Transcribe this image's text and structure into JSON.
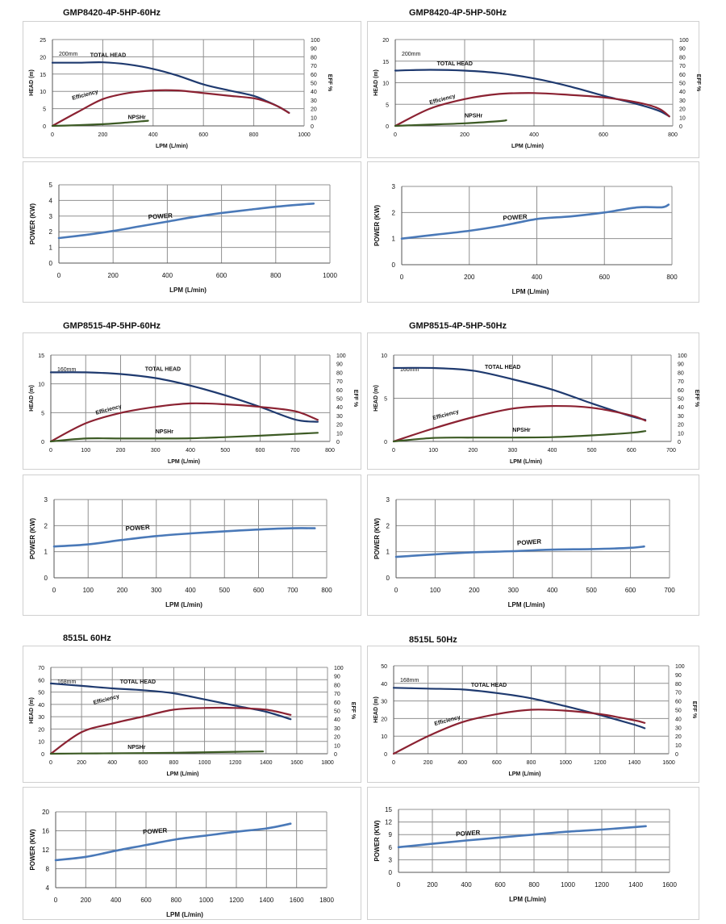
{
  "colors": {
    "head": "#1f3a6f",
    "efficiency": "#8b2232",
    "npshr": "#3c5a24",
    "power": "#4a79b8",
    "grid": "#909090"
  },
  "chart_data": [
    {
      "type": "line",
      "title": "GMP8420-4P-5HP-60Hz",
      "xlabel": "LPM (L/min)",
      "ylabel": "HEAD (m)",
      "y2label": "EFF %",
      "xlim": [
        0,
        1000
      ],
      "xticks": [
        0,
        200,
        400,
        600,
        800,
        1000
      ],
      "ylim": [
        0,
        25
      ],
      "yticks": [
        0,
        5,
        10,
        15,
        20,
        25
      ],
      "y2lim": [
        0,
        100
      ],
      "y2ticks": [
        0,
        10,
        20,
        30,
        40,
        50,
        60,
        70,
        80,
        90,
        100
      ],
      "annotations": [
        "200mm"
      ],
      "series": [
        {
          "name": "TOTAL HEAD",
          "axis": "left",
          "color": "head",
          "label_at": [
            150,
            20
          ],
          "x": [
            0,
            100,
            200,
            300,
            400,
            500,
            600,
            700,
            800,
            850,
            900,
            940
          ],
          "y": [
            18.3,
            18.3,
            18.4,
            17.8,
            16.5,
            14.5,
            12,
            10.3,
            8.7,
            7.2,
            5.5,
            3.8
          ]
        },
        {
          "name": "Efficiency",
          "axis": "right",
          "color": "efficiency",
          "label_at": [
            80,
            30
          ],
          "x": [
            0,
            100,
            200,
            300,
            400,
            500,
            600,
            700,
            800,
            850,
            900,
            940
          ],
          "y": [
            0,
            16,
            31,
            38,
            41,
            41,
            38,
            35,
            32,
            28,
            22,
            15
          ]
        },
        {
          "name": "NPSHr",
          "axis": "left",
          "color": "npshr",
          "label_at": [
            300,
            2
          ],
          "x": [
            0,
            100,
            200,
            300,
            380
          ],
          "y": [
            0,
            0.2,
            0.5,
            1,
            1.5
          ]
        }
      ]
    },
    {
      "type": "line",
      "title": "GMP8420-4P-5HP-50Hz",
      "xlabel": "LPM (L/min)",
      "ylabel": "HEAD (m)",
      "y2label": "EFF %",
      "xlim": [
        0,
        800
      ],
      "xticks": [
        0,
        200,
        400,
        600,
        800
      ],
      "ylim": [
        0,
        20
      ],
      "yticks": [
        0,
        5,
        10,
        15,
        20
      ],
      "y2lim": [
        0,
        100
      ],
      "y2ticks": [
        0,
        10,
        20,
        30,
        40,
        50,
        60,
        70,
        80,
        90,
        100
      ],
      "annotations": [
        "200mm"
      ],
      "series": [
        {
          "name": "TOTAL HEAD",
          "axis": "left",
          "color": "head",
          "label_at": [
            120,
            14
          ],
          "x": [
            0,
            100,
            200,
            300,
            400,
            500,
            600,
            700,
            760,
            790
          ],
          "y": [
            12.8,
            13,
            12.8,
            12.2,
            11,
            9.2,
            7,
            5,
            3.5,
            2.2
          ]
        },
        {
          "name": "Efficiency",
          "axis": "right",
          "color": "efficiency",
          "label_at": [
            100,
            25
          ],
          "x": [
            0,
            100,
            200,
            300,
            400,
            500,
            600,
            700,
            760,
            790
          ],
          "y": [
            0,
            20,
            31,
            37,
            38,
            36,
            33,
            27,
            20,
            11
          ]
        },
        {
          "name": "NPSHr",
          "axis": "left",
          "color": "npshr",
          "label_at": [
            200,
            2
          ],
          "x": [
            0,
            100,
            200,
            300,
            320
          ],
          "y": [
            0,
            0.3,
            0.6,
            1.1,
            1.3
          ]
        }
      ]
    },
    {
      "type": "line",
      "title": "",
      "xlabel": "LPM  (L/min)",
      "ylabel": "POWER (KW)",
      "xlim": [
        0,
        1000
      ],
      "xticks": [
        0,
        200,
        400,
        600,
        800,
        1000
      ],
      "ylim": [
        0,
        5
      ],
      "yticks": [
        0,
        1,
        2,
        3,
        4,
        5
      ],
      "series": [
        {
          "name": "POWER",
          "color": "power",
          "label_at": [
            330,
            2.8
          ],
          "x": [
            0,
            100,
            200,
            300,
            400,
            500,
            600,
            700,
            800,
            900,
            940
          ],
          "y": [
            1.6,
            1.8,
            2.05,
            2.35,
            2.65,
            2.95,
            3.2,
            3.4,
            3.6,
            3.75,
            3.8
          ]
        }
      ]
    },
    {
      "type": "line",
      "title": "",
      "xlabel": "LPM  (L/min)",
      "ylabel": "POWER (KW)",
      "xlim": [
        0,
        800
      ],
      "xticks": [
        0,
        200,
        400,
        600,
        800
      ],
      "ylim": [
        0,
        3
      ],
      "yticks": [
        0,
        1,
        2,
        3
      ],
      "series": [
        {
          "name": "POWER",
          "color": "power",
          "label_at": [
            300,
            1.7
          ],
          "x": [
            0,
            100,
            200,
            300,
            400,
            500,
            600,
            700,
            770,
            790
          ],
          "y": [
            1,
            1.15,
            1.3,
            1.5,
            1.75,
            1.85,
            2,
            2.2,
            2.2,
            2.3
          ]
        }
      ]
    },
    {
      "type": "line",
      "title": "GMP8515-4P-5HP-60Hz",
      "xlabel": "LPM (L/min)",
      "ylabel": "HEAD (m)",
      "y2label": "EFF %",
      "xlim": [
        0,
        800
      ],
      "xticks": [
        0,
        100,
        200,
        300,
        400,
        500,
        600,
        700,
        800
      ],
      "ylim": [
        0,
        15
      ],
      "yticks": [
        0,
        5,
        10,
        15
      ],
      "y2lim": [
        0,
        100
      ],
      "y2ticks": [
        0,
        10,
        20,
        30,
        40,
        50,
        60,
        70,
        80,
        90,
        100
      ],
      "annotations": [
        "160mm"
      ],
      "series": [
        {
          "name": "TOTAL HEAD",
          "axis": "left",
          "color": "head",
          "label_at": [
            270,
            12.3
          ],
          "x": [
            0,
            100,
            200,
            300,
            400,
            500,
            600,
            700,
            765
          ],
          "y": [
            12,
            12,
            11.7,
            11,
            9.7,
            8,
            6,
            3.8,
            3.4
          ]
        },
        {
          "name": "Efficiency",
          "axis": "right",
          "color": "efficiency",
          "label_at": [
            130,
            31
          ],
          "x": [
            0,
            100,
            200,
            300,
            400,
            500,
            600,
            700,
            765
          ],
          "y": [
            0,
            21,
            33,
            40,
            44,
            43,
            40,
            35,
            25
          ]
        },
        {
          "name": "NPSHr",
          "axis": "left",
          "color": "npshr",
          "label_at": [
            300,
            1.4
          ],
          "x": [
            0,
            100,
            200,
            300,
            400,
            500,
            600,
            700,
            765
          ],
          "y": [
            0,
            0.5,
            0.5,
            0.5,
            0.55,
            0.75,
            1,
            1.3,
            1.5
          ]
        }
      ]
    },
    {
      "type": "line",
      "title": "GMP8515-4P-5HP-50Hz",
      "xlabel": "LPM (L/min)",
      "ylabel": "HEAD (m)",
      "y2label": "EFF %",
      "xlim": [
        0,
        700
      ],
      "xticks": [
        0,
        100,
        200,
        300,
        400,
        500,
        600,
        700
      ],
      "ylim": [
        0,
        10
      ],
      "yticks": [
        0,
        5,
        10
      ],
      "y2lim": [
        0,
        100
      ],
      "y2ticks": [
        0,
        10,
        20,
        30,
        40,
        50,
        60,
        70,
        80,
        90,
        100
      ],
      "annotations": [
        "160mm"
      ],
      "series": [
        {
          "name": "TOTAL HEAD",
          "axis": "left",
          "color": "head",
          "label_at": [
            230,
            8.4
          ],
          "x": [
            0,
            100,
            200,
            300,
            400,
            500,
            600,
            635
          ],
          "y": [
            8.5,
            8.5,
            8.2,
            7.2,
            6,
            4.4,
            2.9,
            2.5
          ]
        },
        {
          "name": "Efficiency",
          "axis": "right",
          "color": "efficiency",
          "label_at": [
            100,
            25
          ],
          "x": [
            0,
            100,
            200,
            300,
            400,
            500,
            600,
            635
          ],
          "y": [
            0,
            15,
            28,
            38,
            41,
            39,
            30,
            24
          ]
        },
        {
          "name": "NPSHr",
          "axis": "left",
          "color": "npshr",
          "label_at": [
            300,
            1.1
          ],
          "x": [
            0,
            100,
            200,
            300,
            400,
            500,
            600,
            635
          ],
          "y": [
            0,
            0.4,
            0.45,
            0.45,
            0.5,
            0.7,
            1,
            1.2
          ]
        }
      ]
    },
    {
      "type": "line",
      "title": "",
      "xlabel": "LPM  (L/min)",
      "ylabel": "POWER (KW)",
      "xlim": [
        0,
        800
      ],
      "xticks": [
        0,
        100,
        200,
        300,
        400,
        500,
        600,
        700,
        800
      ],
      "ylim": [
        0,
        3
      ],
      "yticks": [
        0,
        1,
        2,
        3
      ],
      "series": [
        {
          "name": "POWER",
          "color": "power",
          "label_at": [
            210,
            1.8
          ],
          "x": [
            0,
            100,
            200,
            300,
            400,
            500,
            600,
            700,
            765
          ],
          "y": [
            1.2,
            1.28,
            1.45,
            1.6,
            1.7,
            1.78,
            1.85,
            1.9,
            1.9
          ]
        }
      ]
    },
    {
      "type": "line",
      "title": "",
      "xlabel": "LPM  (L/min)",
      "ylabel": "POWER (KW)",
      "xlim": [
        0,
        700
      ],
      "xticks": [
        0,
        100,
        200,
        300,
        400,
        500,
        600,
        700
      ],
      "ylim": [
        0,
        3
      ],
      "yticks": [
        0,
        1,
        2,
        3
      ],
      "series": [
        {
          "name": "POWER",
          "color": "power",
          "label_at": [
            310,
            1.25
          ],
          "x": [
            0,
            100,
            200,
            300,
            400,
            500,
            600,
            635
          ],
          "y": [
            0.8,
            0.9,
            0.98,
            1.02,
            1.08,
            1.1,
            1.15,
            1.2
          ]
        }
      ]
    },
    {
      "type": "line",
      "title": "8515L  60Hz",
      "xlabel": "LPM (L/min)",
      "ylabel": "HEAD (m)",
      "y2label": "EFF %",
      "xlim": [
        0,
        1800
      ],
      "xticks": [
        0,
        200,
        400,
        600,
        800,
        1000,
        1200,
        1400,
        1600,
        1800
      ],
      "ylim": [
        0,
        70
      ],
      "yticks": [
        0,
        10,
        20,
        30,
        40,
        50,
        60,
        70
      ],
      "y2lim": [
        0,
        100
      ],
      "y2ticks": [
        0,
        10,
        20,
        30,
        40,
        50,
        60,
        70,
        80,
        90,
        100
      ],
      "annotations": [
        "168mm"
      ],
      "series": [
        {
          "name": "TOTAL HEAD",
          "axis": "left",
          "color": "head",
          "label_at": [
            450,
            57
          ],
          "x": [
            0,
            200,
            400,
            600,
            800,
            1000,
            1200,
            1400,
            1560
          ],
          "y": [
            57,
            55,
            53,
            51.5,
            49,
            44,
            39,
            34,
            28
          ]
        },
        {
          "name": "Efficiency",
          "axis": "right",
          "color": "efficiency",
          "label_at": [
            280,
            57
          ],
          "x": [
            0,
            200,
            400,
            600,
            800,
            1000,
            1200,
            1400,
            1560
          ],
          "y": [
            0,
            25,
            35,
            43,
            51,
            53,
            53,
            51,
            45
          ]
        },
        {
          "name": "NPSHr",
          "axis": "left",
          "color": "npshr",
          "label_at": [
            500,
            4
          ],
          "x": [
            0,
            200,
            400,
            600,
            800,
            1000,
            1200,
            1380
          ],
          "y": [
            0,
            0.2,
            0.3,
            0.5,
            0.8,
            1.2,
            1.6,
            1.8
          ]
        }
      ]
    },
    {
      "type": "line",
      "title": "8515L  50Hz",
      "xlabel": "LPM (L/min)",
      "ylabel": "HEAD (m)",
      "y2label": "EFF %",
      "xlim": [
        0,
        1600
      ],
      "xticks": [
        0,
        200,
        400,
        600,
        800,
        1000,
        1200,
        1400,
        1600
      ],
      "ylim": [
        0,
        50
      ],
      "yticks": [
        0,
        10,
        20,
        30,
        40,
        50
      ],
      "y2lim": [
        0,
        100
      ],
      "y2ticks": [
        0,
        10,
        20,
        30,
        40,
        50,
        60,
        70,
        80,
        90,
        100
      ],
      "annotations": [
        "168mm"
      ],
      "series": [
        {
          "name": "TOTAL HEAD",
          "axis": "left",
          "color": "head",
          "label_at": [
            450,
            38
          ],
          "x": [
            0,
            200,
            400,
            600,
            800,
            1000,
            1200,
            1400,
            1460
          ],
          "y": [
            37.5,
            37,
            36.5,
            34.5,
            31.5,
            27,
            22,
            16.5,
            14.5
          ]
        },
        {
          "name": "Efficiency",
          "axis": "right",
          "color": "efficiency",
          "label_at": [
            240,
            32
          ],
          "x": [
            0,
            200,
            400,
            600,
            800,
            1000,
            1200,
            1400,
            1460
          ],
          "y": [
            0,
            20,
            36,
            45,
            50,
            49,
            45,
            38,
            35
          ]
        }
      ]
    },
    {
      "type": "line",
      "title": "",
      "xlabel": "LPM  (L/min)",
      "ylabel": "POWER (KW)",
      "xlim": [
        0,
        1800
      ],
      "xticks": [
        0,
        200,
        400,
        600,
        800,
        1000,
        1200,
        1400,
        1600,
        1800
      ],
      "ylim": [
        4,
        20
      ],
      "yticks": [
        4,
        8,
        12,
        16,
        20
      ],
      "series": [
        {
          "name": "POWER",
          "color": "power",
          "label_at": [
            580,
            15.3
          ],
          "x": [
            0,
            200,
            400,
            600,
            800,
            1000,
            1200,
            1400,
            1560
          ],
          "y": [
            9.8,
            10.5,
            11.8,
            13,
            14.2,
            15,
            15.8,
            16.5,
            17.5
          ]
        }
      ]
    },
    {
      "type": "line",
      "title": "",
      "xlabel": "LPM  (L/min)",
      "ylabel": "POWER (KW)",
      "xlim": [
        0,
        1600
      ],
      "xticks": [
        0,
        200,
        400,
        600,
        800,
        1000,
        1200,
        1400,
        1600
      ],
      "ylim": [
        0,
        15
      ],
      "yticks": [
        0,
        3,
        6,
        9,
        12,
        15
      ],
      "series": [
        {
          "name": "POWER",
          "color": "power",
          "label_at": [
            340,
            8.6
          ],
          "x": [
            0,
            200,
            400,
            600,
            800,
            1000,
            1200,
            1400,
            1460
          ],
          "y": [
            6,
            6.8,
            7.6,
            8.3,
            9,
            9.7,
            10.2,
            10.8,
            11
          ]
        }
      ]
    }
  ]
}
